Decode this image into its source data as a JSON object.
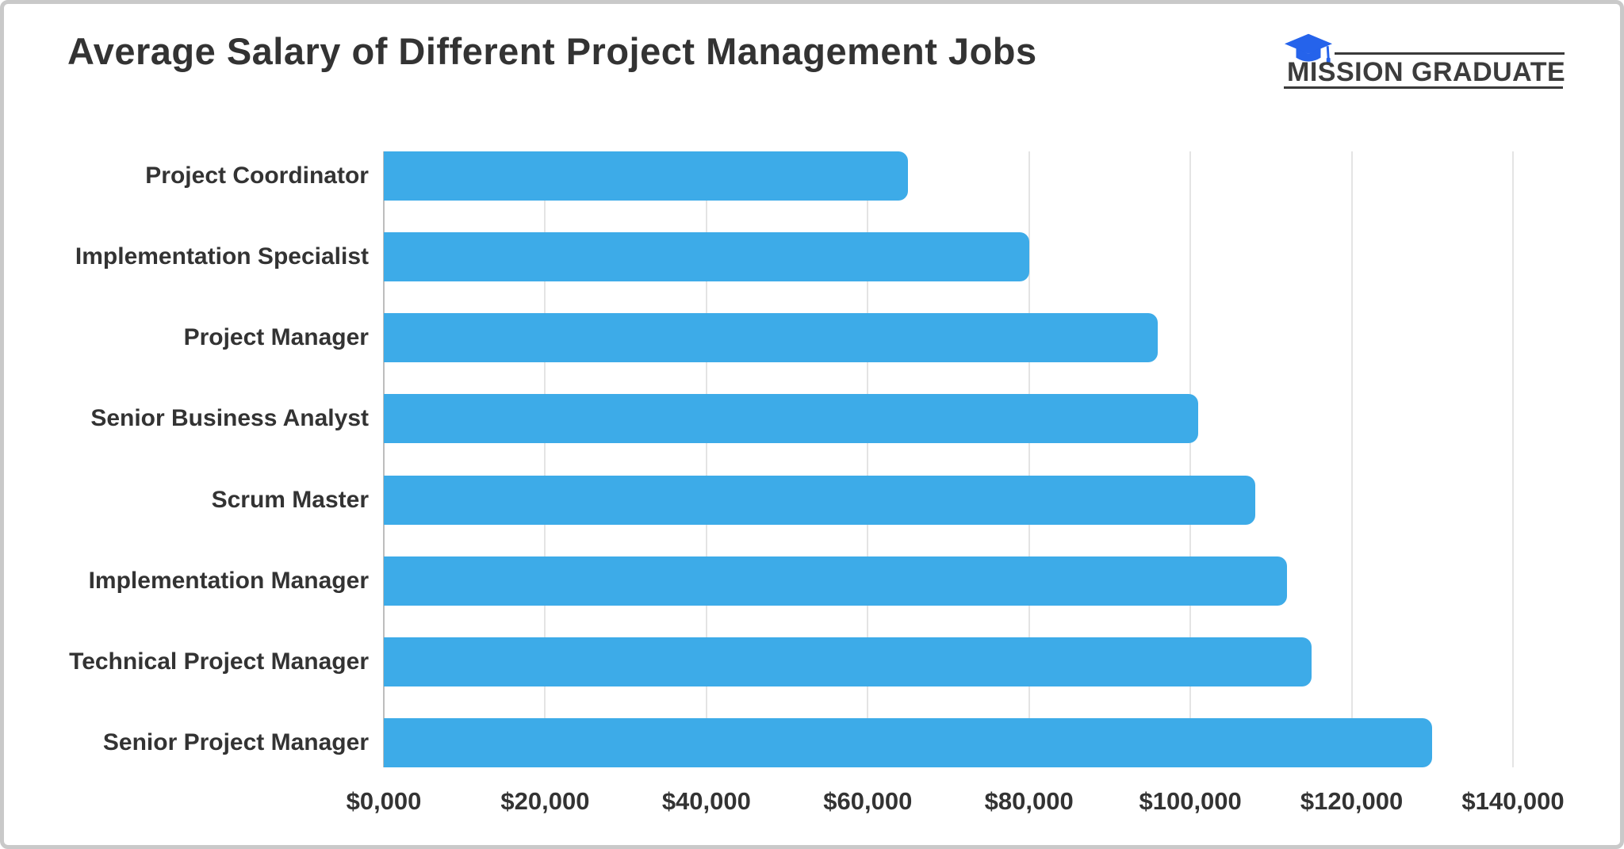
{
  "frame": {
    "border_color": "#c9c9c9",
    "background": "#ffffff"
  },
  "header": {
    "title": "Average Salary of Different Project Management Jobs",
    "title_color": "#333333",
    "logo": {
      "text": "MISSION GRADUATE",
      "cap_icon": "graduation-cap-icon",
      "cap_color": "#2563eb",
      "text_color": "#3c3c3c",
      "rule_color": "#3a3a3a"
    }
  },
  "chart_data": {
    "type": "bar",
    "orientation": "horizontal",
    "title": "Average Salary of Different Project Management Jobs",
    "categories": [
      "Project Coordinator",
      "Implementation Specialist",
      "Project Manager",
      "Senior Business Analyst",
      "Scrum Master",
      "Implementation Manager",
      "Technical Project Manager",
      "Senior Project Manager"
    ],
    "values": [
      65000,
      80000,
      96000,
      101000,
      108000,
      112000,
      115000,
      130000
    ],
    "xlabel": "",
    "ylabel": "",
    "xlim": [
      0,
      140000
    ],
    "x_ticks": [
      0,
      20000,
      40000,
      60000,
      80000,
      100000,
      120000,
      140000
    ],
    "x_tick_labels": [
      "$0,000",
      "$20,000",
      "$40,000",
      "$60,000",
      "$80,000",
      "$100,000",
      "$120,000",
      "$140,000"
    ],
    "bar_color": "#3dabe8",
    "gridline_color": "#e4e4e4",
    "axis_line_color": "#bdbdbd",
    "label_color": "#333333",
    "grid": true,
    "legend": false
  }
}
